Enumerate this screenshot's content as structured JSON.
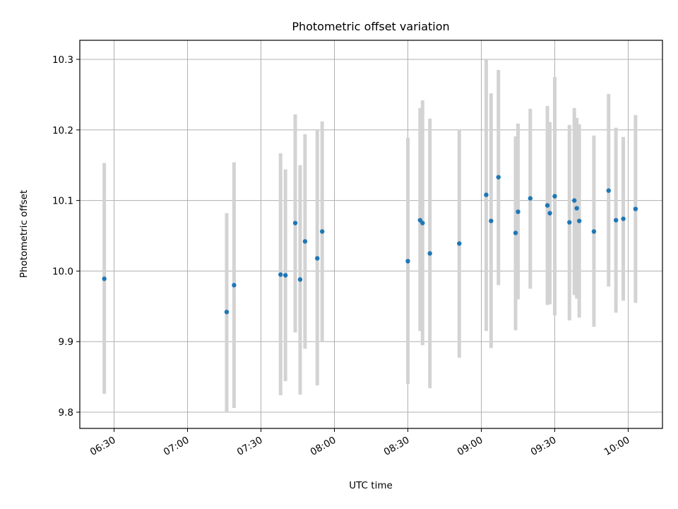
{
  "chart_data": {
    "type": "scatter",
    "title": "Photometric offset variation",
    "xlabel": "UTC time",
    "ylabel": "Photometric offset",
    "grid": true,
    "xlim": [
      "06:16",
      "10:14"
    ],
    "ylim": [
      9.777,
      10.327
    ],
    "x_ticks": [
      "06:30",
      "07:00",
      "07:30",
      "08:00",
      "08:30",
      "09:00",
      "09:30",
      "10:00"
    ],
    "y_ticks": [
      9.8,
      9.9,
      10.0,
      10.1,
      10.2,
      10.3
    ],
    "y_tick_labels": [
      "9.8",
      "9.9",
      "10.0",
      "10.1",
      "10.2",
      "10.3"
    ],
    "colors": {
      "points": "#1f77b4",
      "errorbars": "#d3d3d3",
      "grid": "#b0b0b0"
    },
    "series": [
      {
        "points": [
          {
            "x": "06:26",
            "y": 9.989,
            "ylo": 9.826,
            "yhi": 10.153
          },
          {
            "x": "07:16",
            "y": 9.942,
            "ylo": 9.8,
            "yhi": 10.082
          },
          {
            "x": "07:19",
            "y": 9.98,
            "ylo": 9.806,
            "yhi": 10.154
          },
          {
            "x": "07:38",
            "y": 9.995,
            "ylo": 9.824,
            "yhi": 10.167
          },
          {
            "x": "07:40",
            "y": 9.994,
            "ylo": 9.844,
            "yhi": 10.144
          },
          {
            "x": "07:44",
            "y": 10.068,
            "ylo": 9.913,
            "yhi": 10.222
          },
          {
            "x": "07:46",
            "y": 9.988,
            "ylo": 9.825,
            "yhi": 10.15
          },
          {
            "x": "07:48",
            "y": 10.042,
            "ylo": 9.89,
            "yhi": 10.194
          },
          {
            "x": "07:53",
            "y": 10.018,
            "ylo": 9.838,
            "yhi": 10.2
          },
          {
            "x": "07:55",
            "y": 10.056,
            "ylo": 9.9,
            "yhi": 10.212
          },
          {
            "x": "08:30",
            "y": 10.014,
            "ylo": 9.84,
            "yhi": 10.189
          },
          {
            "x": "08:35",
            "y": 10.072,
            "ylo": 9.915,
            "yhi": 10.231
          },
          {
            "x": "08:36",
            "y": 10.068,
            "ylo": 9.895,
            "yhi": 10.242
          },
          {
            "x": "08:39",
            "y": 10.025,
            "ylo": 9.834,
            "yhi": 10.216
          },
          {
            "x": "08:51",
            "y": 10.039,
            "ylo": 9.877,
            "yhi": 10.2
          },
          {
            "x": "09:02",
            "y": 10.108,
            "ylo": 9.915,
            "yhi": 10.3
          },
          {
            "x": "09:04",
            "y": 10.071,
            "ylo": 9.891,
            "yhi": 10.252
          },
          {
            "x": "09:07",
            "y": 10.133,
            "ylo": 9.98,
            "yhi": 10.285
          },
          {
            "x": "09:14",
            "y": 10.054,
            "ylo": 9.916,
            "yhi": 10.191
          },
          {
            "x": "09:15",
            "y": 10.084,
            "ylo": 9.96,
            "yhi": 10.209
          },
          {
            "x": "09:20",
            "y": 10.103,
            "ylo": 9.975,
            "yhi": 10.23
          },
          {
            "x": "09:27",
            "y": 10.093,
            "ylo": 9.952,
            "yhi": 10.234
          },
          {
            "x": "09:28",
            "y": 10.082,
            "ylo": 9.953,
            "yhi": 10.211
          },
          {
            "x": "09:30",
            "y": 10.106,
            "ylo": 9.937,
            "yhi": 10.275
          },
          {
            "x": "09:36",
            "y": 10.069,
            "ylo": 9.93,
            "yhi": 10.207
          },
          {
            "x": "09:38",
            "y": 10.1,
            "ylo": 9.966,
            "yhi": 10.231
          },
          {
            "x": "09:39",
            "y": 10.089,
            "ylo": 9.961,
            "yhi": 10.217
          },
          {
            "x": "09:40",
            "y": 10.071,
            "ylo": 9.934,
            "yhi": 10.208
          },
          {
            "x": "09:46",
            "y": 10.056,
            "ylo": 9.921,
            "yhi": 10.192
          },
          {
            "x": "09:52",
            "y": 10.114,
            "ylo": 9.978,
            "yhi": 10.251
          },
          {
            "x": "09:55",
            "y": 10.072,
            "ylo": 9.941,
            "yhi": 10.203
          },
          {
            "x": "09:58",
            "y": 10.074,
            "ylo": 9.958,
            "yhi": 10.19
          },
          {
            "x": "10:03",
            "y": 10.088,
            "ylo": 9.955,
            "yhi": 10.221
          }
        ]
      }
    ]
  }
}
